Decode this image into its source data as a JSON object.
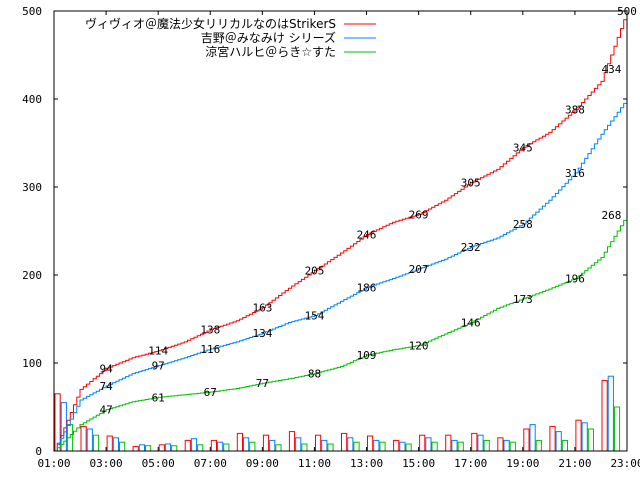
{
  "chart_data": {
    "type": "line",
    "title": "",
    "xlabel": "",
    "ylabel": "",
    "x_range_hours": [
      1,
      23
    ],
    "ylim": [
      0,
      500
    ],
    "y_ticks": [
      0,
      100,
      200,
      300,
      400,
      500
    ],
    "x_tick_labels": [
      "01:00",
      "03:00",
      "05:00",
      "07:00",
      "09:00",
      "11:00",
      "13:00",
      "15:00",
      "17:00",
      "19:00",
      "21:00",
      "23:00"
    ],
    "x_tick_hours": [
      1,
      3,
      5,
      7,
      9,
      11,
      13,
      15,
      17,
      19,
      21,
      23
    ],
    "grid": false,
    "legend_position": "top-center",
    "series": [
      {
        "name": "ヴィヴィオ＠魔法少女リリカルなのはStrikerS",
        "color": "#ff0000",
        "x": [
          1,
          2,
          3,
          4,
          5,
          6,
          7,
          8,
          9,
          10,
          11,
          12,
          13,
          14,
          15,
          16,
          17,
          18,
          19,
          20,
          21,
          22,
          23
        ],
        "values": [
          0,
          70,
          94,
          106,
          114,
          124,
          138,
          148,
          163,
          185,
          205,
          225,
          246,
          260,
          269,
          285,
          305,
          320,
          345,
          362,
          388,
          420,
          500
        ],
        "labels": [
          {
            "x": 3,
            "value": 94
          },
          {
            "x": 5,
            "value": 114
          },
          {
            "x": 7,
            "value": 138
          },
          {
            "x": 9,
            "value": 163
          },
          {
            "x": 11,
            "value": 205
          },
          {
            "x": 13,
            "value": 246
          },
          {
            "x": 15,
            "value": 269
          },
          {
            "x": 17,
            "value": 305
          },
          {
            "x": 19,
            "value": 345
          },
          {
            "x": 21,
            "value": 388
          },
          {
            "x": 22.4,
            "value": 434
          },
          {
            "x": 23,
            "value": 500
          }
        ]
      },
      {
        "name": "吉野＠みなみけ シリーズ",
        "color": "#0080ff",
        "x": [
          1,
          2,
          3,
          4,
          5,
          6,
          7,
          8,
          9,
          10,
          11,
          12,
          13,
          14,
          15,
          16,
          17,
          18,
          19,
          20,
          21,
          22,
          23
        ],
        "values": [
          0,
          58,
          74,
          88,
          97,
          106,
          116,
          124,
          134,
          146,
          154,
          170,
          186,
          196,
          207,
          218,
          232,
          242,
          258,
          285,
          316,
          360,
          400
        ],
        "labels": [
          {
            "x": 3,
            "value": 74
          },
          {
            "x": 5,
            "value": 97
          },
          {
            "x": 7,
            "value": 116
          },
          {
            "x": 9,
            "value": 134
          },
          {
            "x": 11,
            "value": 154
          },
          {
            "x": 13,
            "value": 186
          },
          {
            "x": 15,
            "value": 207
          },
          {
            "x": 17,
            "value": 232
          },
          {
            "x": 19,
            "value": 258
          },
          {
            "x": 21,
            "value": 316
          }
        ]
      },
      {
        "name": "涼宮ハルヒ＠らき☆すた",
        "color": "#00c000",
        "x": [
          1,
          2,
          3,
          4,
          5,
          6,
          7,
          8,
          9,
          10,
          11,
          12,
          13,
          14,
          15,
          16,
          17,
          18,
          19,
          20,
          21,
          22,
          23
        ],
        "values": [
          0,
          30,
          47,
          56,
          61,
          64,
          67,
          71,
          77,
          82,
          88,
          96,
          109,
          115,
          120,
          133,
          146,
          162,
          173,
          184,
          196,
          220,
          268
        ],
        "labels": [
          {
            "x": 3,
            "value": 47
          },
          {
            "x": 5,
            "value": 61
          },
          {
            "x": 7,
            "value": 67
          },
          {
            "x": 9,
            "value": 77
          },
          {
            "x": 11,
            "value": 88
          },
          {
            "x": 13,
            "value": 109
          },
          {
            "x": 15,
            "value": 120
          },
          {
            "x": 17,
            "value": 146
          },
          {
            "x": 19,
            "value": 173
          },
          {
            "x": 21,
            "value": 196
          },
          {
            "x": 22.4,
            "value": 268
          }
        ]
      }
    ],
    "hourly_bars": {
      "x": [
        1,
        2,
        3,
        4,
        5,
        6,
        7,
        8,
        9,
        10,
        11,
        12,
        13,
        14,
        15,
        16,
        17,
        18,
        19,
        20,
        21,
        22,
        23
      ],
      "series_values": [
        [
          65,
          28,
          17,
          5,
          7,
          12,
          12,
          20,
          18,
          22,
          18,
          20,
          17,
          12,
          18,
          18,
          20,
          15,
          25,
          28,
          35,
          80,
          0
        ],
        [
          55,
          25,
          15,
          7,
          8,
          14,
          10,
          15,
          12,
          15,
          12,
          15,
          12,
          10,
          15,
          12,
          18,
          12,
          30,
          22,
          32,
          85,
          0
        ],
        [
          30,
          18,
          10,
          6,
          6,
          7,
          8,
          10,
          7,
          8,
          8,
          10,
          10,
          8,
          10,
          10,
          12,
          10,
          12,
          12,
          25,
          50,
          0
        ]
      ]
    }
  }
}
